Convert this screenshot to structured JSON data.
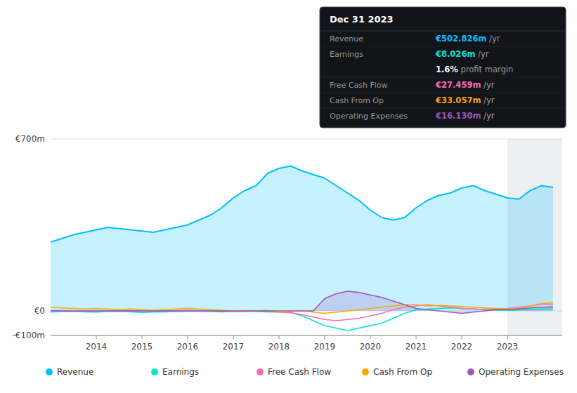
{
  "chart_data": {
    "type": "line",
    "x": [
      2013.0,
      2013.25,
      2013.5,
      2013.75,
      2014.0,
      2014.25,
      2014.5,
      2014.75,
      2015.0,
      2015.25,
      2015.5,
      2015.75,
      2016.0,
      2016.25,
      2016.5,
      2016.75,
      2017.0,
      2017.25,
      2017.5,
      2017.75,
      2018.0,
      2018.25,
      2018.5,
      2018.75,
      2019.0,
      2019.25,
      2019.5,
      2019.75,
      2020.0,
      2020.25,
      2020.5,
      2020.75,
      2021.0,
      2021.25,
      2021.5,
      2021.75,
      2022.0,
      2022.25,
      2022.5,
      2022.75,
      2023.0,
      2023.25,
      2023.5,
      2023.75,
      2024.0
    ],
    "xlim": [
      2013.0,
      2024.2
    ],
    "xticks": [
      2014,
      2015,
      2016,
      2017,
      2018,
      2019,
      2020,
      2021,
      2022,
      2023
    ],
    "ylim": [
      -100,
      700
    ],
    "yticks": [
      {
        "value": -100,
        "label": "-€100m"
      },
      {
        "value": 0,
        "label": "€0"
      },
      {
        "value": 700,
        "label": "€700m"
      }
    ],
    "grid": true,
    "legend": "bottom",
    "highlight_x": [
      2023.0,
      2024.2
    ],
    "series": [
      {
        "name": "Revenue",
        "type": "area",
        "color": "#00bfff",
        "values": [
          280,
          295,
          310,
          320,
          330,
          340,
          335,
          330,
          325,
          320,
          330,
          340,
          350,
          370,
          390,
          420,
          460,
          490,
          510,
          560,
          580,
          590,
          570,
          555,
          540,
          510,
          480,
          450,
          410,
          380,
          370,
          380,
          420,
          450,
          470,
          480,
          500,
          510,
          490,
          475,
          460,
          455,
          490,
          510,
          503
        ]
      },
      {
        "name": "Earnings",
        "type": "line",
        "color": "#00e5cc",
        "values": [
          -5,
          -3,
          -2,
          -4,
          -5,
          -3,
          -2,
          -4,
          -6,
          -5,
          -4,
          -3,
          -2,
          -2,
          -3,
          -4,
          -3,
          -2,
          -3,
          -4,
          -5,
          -6,
          -20,
          -40,
          -60,
          -70,
          -80,
          -70,
          -60,
          -50,
          -30,
          -10,
          5,
          8,
          10,
          12,
          10,
          8,
          5,
          3,
          2,
          4,
          6,
          8,
          8
        ]
      },
      {
        "name": "Free Cash Flow",
        "type": "line",
        "color": "#ff69b4",
        "values": [
          2,
          1,
          0,
          -1,
          0,
          1,
          2,
          1,
          0,
          -1,
          0,
          1,
          2,
          1,
          0,
          -1,
          -2,
          -1,
          0,
          1,
          -5,
          -8,
          -15,
          -25,
          -35,
          -40,
          -35,
          -30,
          -20,
          -10,
          5,
          15,
          20,
          25,
          20,
          15,
          10,
          8,
          5,
          8,
          10,
          15,
          20,
          27,
          27
        ]
      },
      {
        "name": "Cash From Op",
        "type": "line",
        "color": "#ffa500",
        "values": [
          15,
          12,
          10,
          8,
          10,
          8,
          5,
          8,
          5,
          3,
          5,
          8,
          10,
          8,
          5,
          3,
          0,
          -2,
          0,
          2,
          -5,
          -3,
          0,
          -5,
          -10,
          -5,
          0,
          5,
          10,
          15,
          20,
          25,
          25,
          20,
          22,
          20,
          18,
          15,
          12,
          10,
          8,
          10,
          20,
          30,
          33
        ]
      },
      {
        "name": "Operating Expenses",
        "type": "area",
        "color": "#9b59b6",
        "values": [
          0,
          0,
          0,
          0,
          0,
          0,
          0,
          0,
          0,
          0,
          0,
          0,
          0,
          0,
          0,
          0,
          0,
          0,
          0,
          0,
          0,
          0,
          0,
          0,
          50,
          70,
          80,
          75,
          65,
          55,
          40,
          25,
          10,
          5,
          0,
          -5,
          -10,
          -5,
          0,
          5,
          5,
          8,
          12,
          15,
          16
        ]
      }
    ],
    "tooltip": {
      "title": "Dec 31 2023",
      "rows": [
        {
          "label": "Revenue",
          "value": "€502.826m",
          "suffix": " /yr",
          "color": "#00bfff"
        },
        {
          "label": "Earnings",
          "value": "€8.026m",
          "suffix": " /yr",
          "color": "#00e5cc"
        },
        {
          "value": "1.6%",
          "suffix": " profit margin",
          "color": "#ffffff"
        },
        {
          "label": "Free Cash Flow",
          "value": "€27.459m",
          "suffix": " /yr",
          "color": "#ff69b4"
        },
        {
          "label": "Cash From Op",
          "value": "€33.057m",
          "suffix": " /yr",
          "color": "#ffa500"
        },
        {
          "label": "Operating Expenses",
          "value": "€16.130m",
          "suffix": " /yr",
          "color": "#9b59b6"
        }
      ]
    }
  }
}
